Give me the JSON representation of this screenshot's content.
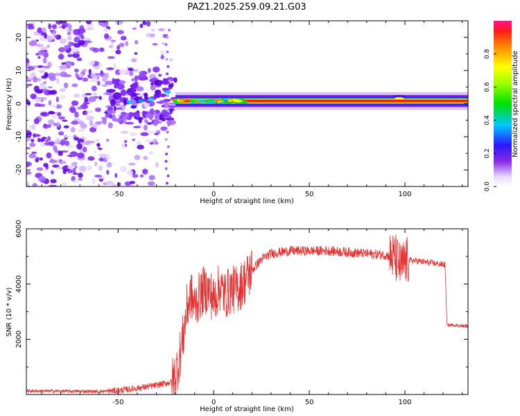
{
  "title": "PAZ1.2025.259.09.21.G03",
  "chart_data": [
    {
      "type": "heatmap",
      "xlabel": "Height of straight line (km)",
      "ylabel": "Frequency (Hz)",
      "xlim": [
        -98,
        133
      ],
      "ylim": [
        -25,
        25
      ],
      "xticks": [
        -50,
        0,
        50,
        100
      ],
      "yticks": [
        -20,
        -10,
        0,
        10,
        20
      ],
      "colorbar": {
        "label": "Normalized spectral amplitude",
        "range": [
          0,
          1
        ],
        "ticks": [
          0.0,
          0.2,
          0.4,
          0.6,
          0.8
        ]
      },
      "features": {
        "noise_region_km": [
          -98,
          -22
        ],
        "transition_region_km": [
          -55,
          -20
        ],
        "tone_start_km": -20,
        "tone_frequency_hz": 0.8,
        "tone_bandwidth_hz": 1.5
      }
    },
    {
      "type": "line",
      "xlabel": "Height of straight line (km)",
      "ylabel": "SNR (10 * v/v)",
      "xlim": [
        -98,
        133
      ],
      "ylim": [
        0,
        6000
      ],
      "xticks": [
        -50,
        0,
        50,
        100
      ],
      "yticks": [
        2000,
        4000,
        6000
      ],
      "series": [
        {
          "color": "#e83030",
          "x": [
            -98,
            -80,
            -60,
            -50,
            -40,
            -30,
            -22,
            -20,
            -18,
            -16,
            -14,
            -12,
            -10,
            -8,
            -5,
            -2,
            0,
            3,
            6,
            9,
            12,
            15,
            20,
            25,
            30,
            35,
            40,
            50,
            60,
            70,
            80,
            90,
            95,
            98,
            100,
            102,
            105,
            110,
            115,
            120,
            121,
            122,
            125,
            130,
            133
          ],
          "y": [
            130,
            120,
            110,
            140,
            230,
            330,
            450,
            700,
            1300,
            2100,
            3100,
            3600,
            3200,
            3500,
            3800,
            3700,
            3400,
            3900,
            3600,
            3800,
            3800,
            4000,
            4500,
            4900,
            5100,
            5150,
            5200,
            5200,
            5200,
            5150,
            5100,
            5050,
            4950,
            4600,
            4800,
            4850,
            4850,
            4800,
            4750,
            4700,
            4700,
            2500,
            2520,
            2480,
            2480
          ]
        }
      ]
    }
  ]
}
